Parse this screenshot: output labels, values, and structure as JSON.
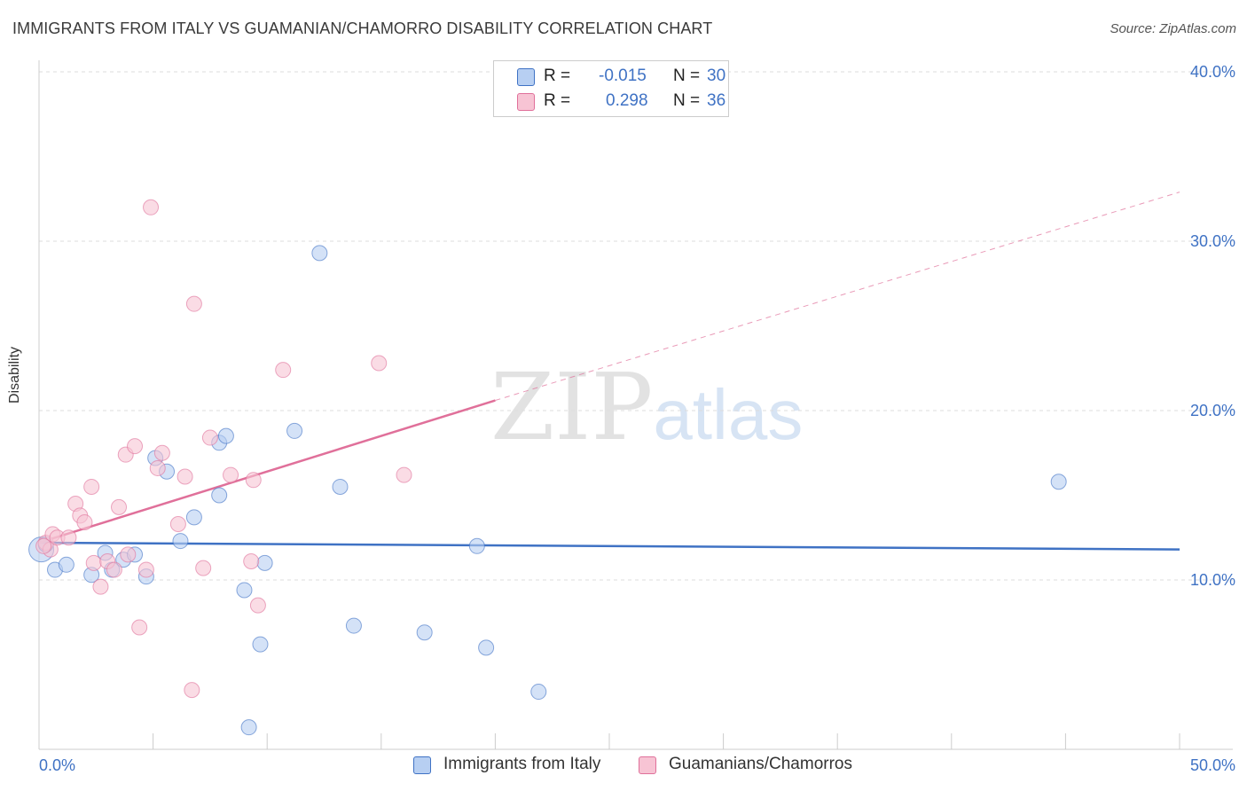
{
  "title": "IMMIGRANTS FROM ITALY VS GUAMANIAN/CHAMORRO DISABILITY CORRELATION CHART",
  "source": "Source: ZipAtlas.com",
  "watermark": {
    "zip": "ZIP",
    "atlas": "atlas"
  },
  "colors": {
    "blue": "#3f72c4",
    "blue_fill": "#b7cff2",
    "pink": "#e0709a",
    "pink_fill": "#f7c4d4",
    "grid": "#dddddd"
  },
  "legend": {
    "rows": [
      {
        "r_label": "R =",
        "r_value": "-0.015",
        "n_label": "N =",
        "n_value": "30"
      },
      {
        "r_label": "R =",
        "r_value": "0.298",
        "n_label": "N =",
        "n_value": "36"
      }
    ]
  },
  "bottom_legend": {
    "series1": "Immigrants from Italy",
    "series2": "Guamanians/Chamorros"
  },
  "chart_data": {
    "type": "scatter",
    "title": "IMMIGRANTS FROM ITALY VS GUAMANIAN/CHAMORRO DISABILITY CORRELATION CHART",
    "xlabel": "",
    "ylabel": "Disability",
    "xlim": [
      0,
      50
    ],
    "ylim": [
      0,
      40
    ],
    "x_tick_labels": [
      "0.0%",
      "50.0%"
    ],
    "y_tick_values": [
      10,
      20,
      30,
      40
    ],
    "y_tick_labels": [
      "10.0%",
      "20.0%",
      "30.0%",
      "40.0%"
    ],
    "grid": true,
    "series": [
      {
        "name": "Immigrants from Italy",
        "color": "#3f72c4",
        "points": [
          [
            0.1,
            11.8
          ],
          [
            0.3,
            12.1
          ],
          [
            0.7,
            10.6
          ],
          [
            1.2,
            10.9
          ],
          [
            2.3,
            10.3
          ],
          [
            2.9,
            11.6
          ],
          [
            3.2,
            10.6
          ],
          [
            3.7,
            11.2
          ],
          [
            4.2,
            11.5
          ],
          [
            4.7,
            10.2
          ],
          [
            5.1,
            17.2
          ],
          [
            5.6,
            16.4
          ],
          [
            6.2,
            12.3
          ],
          [
            6.8,
            13.7
          ],
          [
            7.9,
            15.0
          ],
          [
            7.9,
            18.1
          ],
          [
            8.2,
            18.5
          ],
          [
            9.0,
            9.4
          ],
          [
            9.2,
            1.3
          ],
          [
            9.9,
            11.0
          ],
          [
            9.7,
            6.2
          ],
          [
            11.2,
            18.8
          ],
          [
            12.3,
            29.3
          ],
          [
            13.2,
            15.5
          ],
          [
            13.8,
            7.3
          ],
          [
            16.9,
            6.9
          ],
          [
            19.2,
            12.0
          ],
          [
            19.6,
            6.0
          ],
          [
            21.9,
            3.4
          ],
          [
            44.7,
            15.8
          ]
        ],
        "trend": {
          "x": [
            0,
            50
          ],
          "y": [
            12.2,
            11.8
          ],
          "style": "solid"
        }
      },
      {
        "name": "Guamanians/Chamorros",
        "color": "#e0709a",
        "points": [
          [
            0.3,
            12.2
          ],
          [
            0.5,
            11.8
          ],
          [
            0.6,
            12.7
          ],
          [
            0.8,
            12.5
          ],
          [
            1.3,
            12.5
          ],
          [
            1.6,
            14.5
          ],
          [
            1.8,
            13.8
          ],
          [
            2.0,
            13.4
          ],
          [
            2.3,
            15.5
          ],
          [
            2.4,
            11.0
          ],
          [
            2.7,
            9.6
          ],
          [
            3.0,
            11.1
          ],
          [
            3.3,
            10.6
          ],
          [
            3.5,
            14.3
          ],
          [
            3.8,
            17.4
          ],
          [
            3.9,
            11.5
          ],
          [
            4.2,
            17.9
          ],
          [
            4.4,
            7.2
          ],
          [
            4.7,
            10.6
          ],
          [
            4.9,
            32.0
          ],
          [
            5.2,
            16.6
          ],
          [
            5.4,
            17.5
          ],
          [
            6.1,
            13.3
          ],
          [
            6.4,
            16.1
          ],
          [
            6.7,
            3.5
          ],
          [
            6.8,
            26.3
          ],
          [
            7.2,
            10.7
          ],
          [
            7.5,
            18.4
          ],
          [
            8.4,
            16.2
          ],
          [
            9.3,
            11.1
          ],
          [
            9.4,
            15.9
          ],
          [
            9.6,
            8.5
          ],
          [
            10.7,
            22.4
          ],
          [
            14.9,
            22.8
          ],
          [
            16.0,
            16.2
          ],
          [
            0.2,
            12.0
          ]
        ],
        "trend": {
          "x": [
            0,
            20
          ],
          "y": [
            12.2,
            20.6
          ],
          "style": "solid",
          "extension": {
            "x": [
              20,
              50
            ],
            "y": [
              20.6,
              32.9
            ],
            "style": "dashed"
          }
        }
      }
    ]
  }
}
